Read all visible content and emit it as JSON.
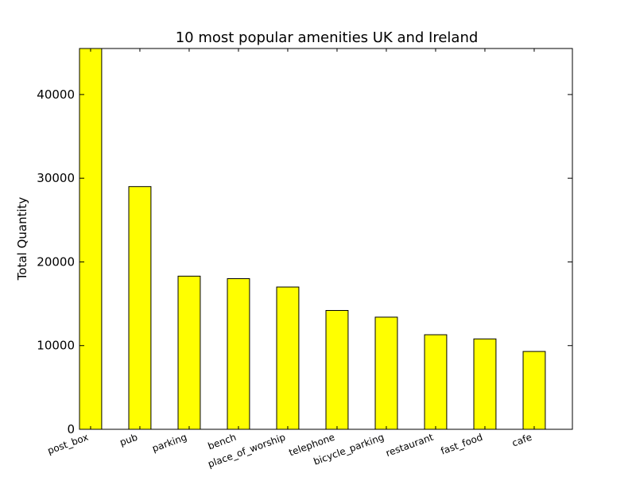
{
  "chart_data": {
    "type": "bar",
    "title": "10 most popular amenities UK and Ireland",
    "xlabel": "",
    "ylabel": "Total Quantity",
    "categories": [
      "post_box",
      "pub",
      "parking",
      "bench",
      "place_of_worship",
      "telephone",
      "bicycle_parking",
      "restaurant",
      "fast_food",
      "cafe"
    ],
    "values": [
      45500,
      29000,
      18300,
      18000,
      17000,
      14200,
      13400,
      11300,
      10800,
      9300
    ],
    "ylim": [
      0,
      45500
    ],
    "yticks": [
      0,
      10000,
      20000,
      30000,
      40000
    ],
    "bar_color": "#ffff00",
    "grid": false,
    "legend": "none"
  }
}
